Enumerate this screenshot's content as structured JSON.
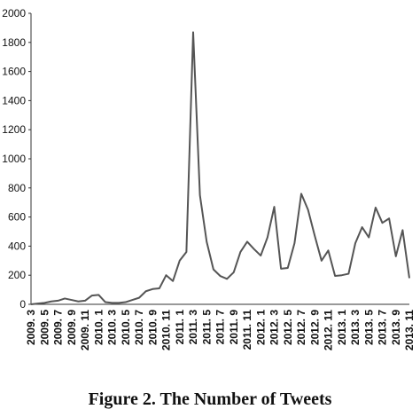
{
  "chart_data": {
    "type": "line",
    "title": "Figure 2. The Number of Tweets",
    "categories": [
      "2009. 3",
      null,
      "2009. 5",
      null,
      "2009. 7",
      null,
      "2009. 9",
      null,
      "2009. 11",
      null,
      "2010. 1",
      null,
      "2010. 3",
      null,
      "2010. 5",
      null,
      "2010. 7",
      null,
      "2010. 9",
      null,
      "2010. 11",
      null,
      "2011. 1",
      null,
      "2011. 3",
      null,
      "2011. 5",
      null,
      "2011. 7",
      null,
      "2011. 9",
      null,
      "2011. 11",
      null,
      "2012. 1",
      null,
      "2012. 3",
      null,
      "2012. 5",
      null,
      "2012. 7",
      null,
      "2012. 9",
      null,
      "2012. 11",
      null,
      "2013. 1",
      null,
      "2013. 3",
      null,
      "2013. 5",
      null,
      "2013. 7",
      null,
      "2013. 9",
      null,
      "2013. 11"
    ],
    "values": [
      0,
      5,
      10,
      20,
      25,
      40,
      30,
      20,
      25,
      60,
      65,
      15,
      10,
      10,
      15,
      30,
      45,
      90,
      105,
      110,
      200,
      160,
      300,
      360,
      1870,
      750,
      430,
      240,
      195,
      175,
      220,
      360,
      430,
      380,
      335,
      460,
      670,
      245,
      250,
      420,
      760,
      650,
      470,
      300,
      370,
      195,
      200,
      210,
      420,
      530,
      460,
      665,
      560,
      590,
      330,
      510,
      180
    ],
    "color": "#555555",
    "ylim": [
      0,
      2000
    ],
    "yticks": [
      0,
      200,
      400,
      600,
      800,
      1000,
      1200,
      1400,
      1600,
      1800,
      2000
    ],
    "grid": false
  }
}
